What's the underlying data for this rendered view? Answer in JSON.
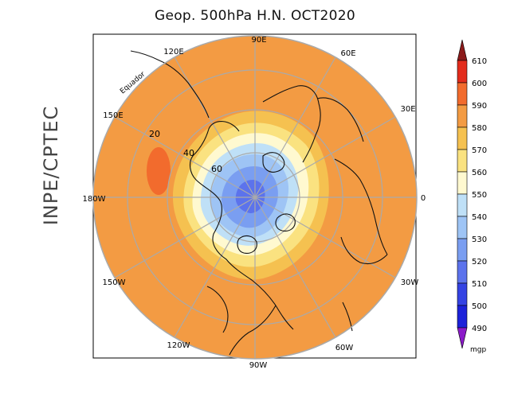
{
  "title": "Geop. 500hPa H.N. OCT2020",
  "side_label": "INPE/CPTEC",
  "map": {
    "projection": "north polar stereographic",
    "equator_label": "Equador",
    "longitude_labels": [
      "90E",
      "60E",
      "30E",
      "0",
      "30W",
      "60W",
      "90W",
      "120W",
      "150W",
      "180W",
      "150E",
      "120E"
    ],
    "latitude_labels": [
      "20",
      "40",
      "60"
    ]
  },
  "colorbar": {
    "unit": "mgp",
    "labels": [
      "610",
      "600",
      "590",
      "580",
      "570",
      "560",
      "550",
      "540",
      "530",
      "520",
      "510",
      "500",
      "490"
    ],
    "colors": {
      "above_610": "#8b1a1a",
      "600_610": "#e32c1c",
      "590_600": "#f26b2d",
      "580_590": "#f39b43",
      "570_580": "#f5c150",
      "560_570": "#fae280",
      "550_560": "#fff9d0",
      "540_550": "#bfe0f7",
      "530_540": "#9ec4f5",
      "520_530": "#7a9ef1",
      "510_520": "#5c73ec",
      "500_510": "#3443e3",
      "490_500": "#1c22d9",
      "below_490": "#8b1ac9"
    }
  }
}
